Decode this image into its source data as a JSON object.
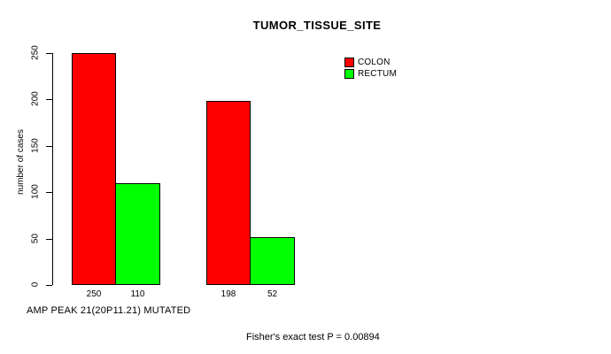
{
  "figure": {
    "title": "TUMOR_TISSUE_SITE",
    "ylabel": "number of cases",
    "xlabel": "AMP PEAK 21(20P11.21) MUTATED",
    "footnote": "Fisher's exact test P = 0.00894",
    "background": "#ffffff"
  },
  "legend": {
    "position": "top-right",
    "items": [
      {
        "label": "COLON",
        "color": "#ff0000"
      },
      {
        "label": "RECTUM",
        "color": "#00ff00"
      }
    ]
  },
  "chart_data": {
    "type": "bar",
    "title": "TUMOR_TISSUE_SITE",
    "ylabel": "number of cases",
    "xlabel": "AMP PEAK 21(20P11.21) MUTATED",
    "annotation": "Fisher's exact test P = 0.00894",
    "legend_position": "top-right",
    "grid": false,
    "ylim": [
      0,
      250
    ],
    "yticks": [
      0,
      50,
      100,
      150,
      200,
      250
    ],
    "n_groups": 2,
    "series": [
      {
        "name": "COLON",
        "color": "#ff0000",
        "values": [
          250,
          198
        ]
      },
      {
        "name": "RECTUM",
        "color": "#00ff00",
        "values": [
          110,
          52
        ]
      }
    ],
    "bar_value_labels": [
      [
        "250",
        "110"
      ],
      [
        "198",
        "52"
      ]
    ]
  }
}
